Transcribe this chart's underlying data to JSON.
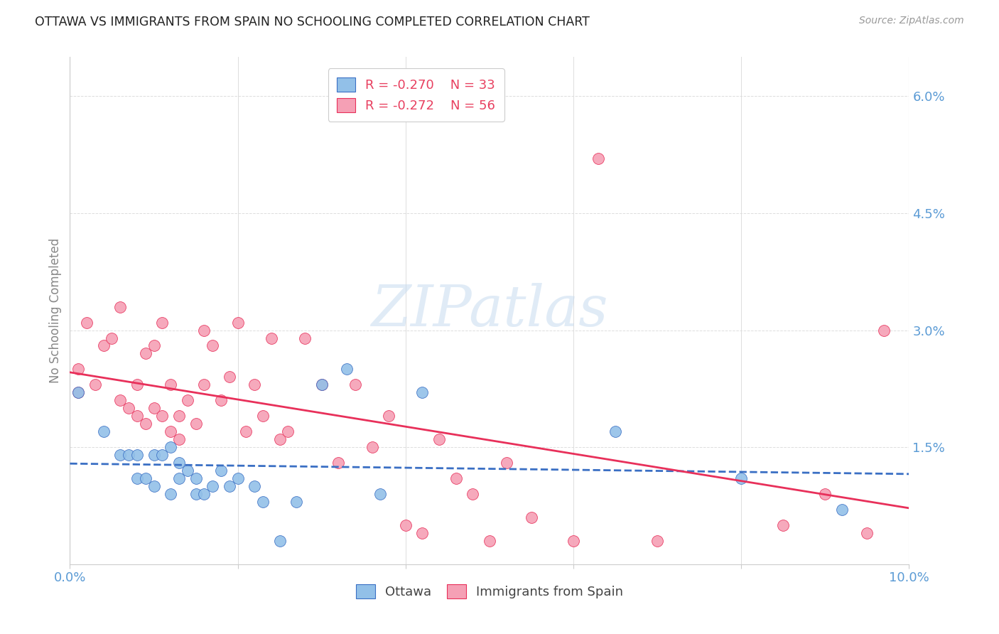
{
  "title": "OTTAWA VS IMMIGRANTS FROM SPAIN NO SCHOOLING COMPLETED CORRELATION CHART",
  "source": "Source: ZipAtlas.com",
  "ylabel": "No Schooling Completed",
  "xlim": [
    0.0,
    0.1
  ],
  "ylim": [
    0.0,
    0.065
  ],
  "yticks_right": [
    0.0,
    0.015,
    0.03,
    0.045,
    0.06
  ],
  "ytick_labels_right": [
    "",
    "1.5%",
    "3.0%",
    "4.5%",
    "6.0%"
  ],
  "legend_R1": "-0.270",
  "legend_N1": "33",
  "legend_R2": "-0.272",
  "legend_N2": "56",
  "color_ottawa": "#92C0E8",
  "color_spain": "#F5A0B5",
  "color_line_ottawa": "#3A6FC4",
  "color_line_spain": "#E8305A",
  "color_axis_labels": "#5B9BD5",
  "color_legend_r": "#E84060",
  "color_legend_n": "#5B9BD5",
  "watermark_text": "ZIPatlas",
  "ottawa_x": [
    0.001,
    0.004,
    0.006,
    0.007,
    0.008,
    0.008,
    0.009,
    0.01,
    0.01,
    0.011,
    0.012,
    0.012,
    0.013,
    0.013,
    0.014,
    0.015,
    0.015,
    0.016,
    0.017,
    0.018,
    0.019,
    0.02,
    0.022,
    0.023,
    0.025,
    0.027,
    0.03,
    0.033,
    0.037,
    0.042,
    0.065,
    0.08,
    0.092
  ],
  "ottawa_y": [
    0.022,
    0.017,
    0.014,
    0.014,
    0.011,
    0.014,
    0.011,
    0.014,
    0.01,
    0.014,
    0.009,
    0.015,
    0.011,
    0.013,
    0.012,
    0.009,
    0.011,
    0.009,
    0.01,
    0.012,
    0.01,
    0.011,
    0.01,
    0.008,
    0.003,
    0.008,
    0.023,
    0.025,
    0.009,
    0.022,
    0.017,
    0.011,
    0.007
  ],
  "spain_x": [
    0.001,
    0.001,
    0.002,
    0.003,
    0.004,
    0.005,
    0.006,
    0.006,
    0.007,
    0.008,
    0.008,
    0.009,
    0.009,
    0.01,
    0.01,
    0.011,
    0.011,
    0.012,
    0.012,
    0.013,
    0.013,
    0.014,
    0.015,
    0.016,
    0.016,
    0.017,
    0.018,
    0.019,
    0.02,
    0.021,
    0.022,
    0.023,
    0.024,
    0.025,
    0.026,
    0.028,
    0.03,
    0.032,
    0.034,
    0.036,
    0.038,
    0.04,
    0.042,
    0.044,
    0.046,
    0.048,
    0.05,
    0.052,
    0.055,
    0.06,
    0.063,
    0.07,
    0.085,
    0.09,
    0.095,
    0.097
  ],
  "spain_y": [
    0.025,
    0.022,
    0.031,
    0.023,
    0.028,
    0.029,
    0.021,
    0.033,
    0.02,
    0.019,
    0.023,
    0.018,
    0.027,
    0.02,
    0.028,
    0.019,
    0.031,
    0.017,
    0.023,
    0.019,
    0.016,
    0.021,
    0.018,
    0.023,
    0.03,
    0.028,
    0.021,
    0.024,
    0.031,
    0.017,
    0.023,
    0.019,
    0.029,
    0.016,
    0.017,
    0.029,
    0.023,
    0.013,
    0.023,
    0.015,
    0.019,
    0.005,
    0.004,
    0.016,
    0.011,
    0.009,
    0.003,
    0.013,
    0.006,
    0.003,
    0.052,
    0.003,
    0.005,
    0.009,
    0.004,
    0.03
  ]
}
